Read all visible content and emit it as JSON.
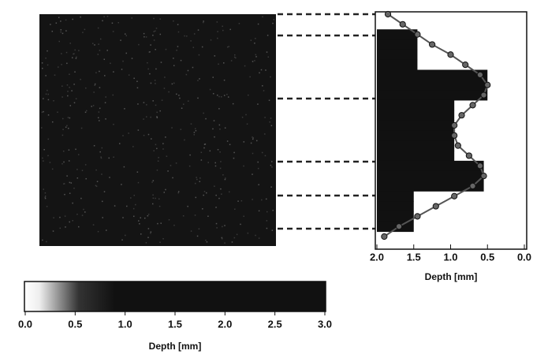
{
  "chart_data": [
    {
      "type": "colorbar",
      "xlabel": "Depth [mm]",
      "xlim": [
        0,
        3
      ],
      "xticks": [
        {
          "value": 0,
          "label": "0.0"
        },
        {
          "value": 0.5,
          "label": "0.5"
        },
        {
          "value": 1,
          "label": "1.0"
        },
        {
          "value": 1.5,
          "label": "1.5"
        },
        {
          "value": 2,
          "label": "2.0"
        },
        {
          "value": 2.5,
          "label": "2.5"
        },
        {
          "value": 3,
          "label": "3.0"
        }
      ]
    },
    {
      "type": "profile",
      "xlabel": "Depth [mm]",
      "xlim": [
        2,
        0
      ],
      "xticks": [
        {
          "value": 2,
          "label": "2.0"
        },
        {
          "value": 1.5,
          "label": "1.5"
        },
        {
          "value": 1,
          "label": "1.0"
        },
        {
          "value": 0.5,
          "label": "0.5"
        },
        {
          "value": 0,
          "label": "0.0"
        }
      ],
      "categories": [
        null,
        null,
        null,
        null,
        null,
        null,
        null,
        null,
        null,
        null,
        null,
        null,
        null,
        null,
        null,
        null,
        null,
        null,
        null,
        null,
        null,
        null,
        null
      ],
      "series": [
        {
          "color": "#111111",
          "values": [
            null,
            null,
            1.45,
            1.45,
            1.45,
            1.45,
            0.5,
            0.5,
            0.5,
            0.95,
            0.95,
            0.95,
            0.95,
            0.95,
            0.95,
            0.55,
            0.55,
            0.55,
            1.5,
            1.5,
            1.5,
            1.5,
            null
          ]
        },
        {
          "color": "#555555",
          "values": [
            1.85,
            1.65,
            1.45,
            1.25,
            1.0,
            0.8,
            0.6,
            0.5,
            0.55,
            0.7,
            0.85,
            0.95,
            0.95,
            0.9,
            0.75,
            0.6,
            0.55,
            0.7,
            0.95,
            1.2,
            1.45,
            1.7,
            1.9
          ]
        }
      ]
    }
  ]
}
